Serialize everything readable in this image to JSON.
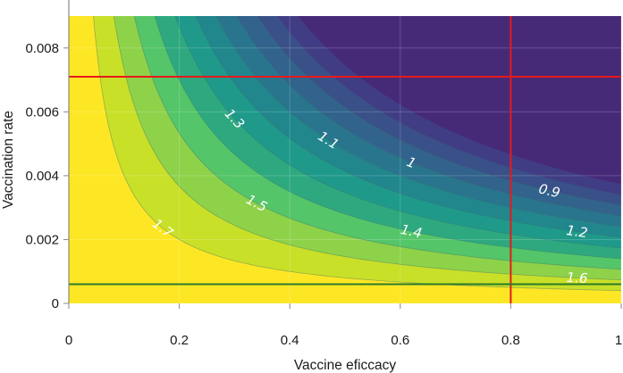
{
  "chart_data": {
    "type": "heatmap",
    "subtype": "filled-contour",
    "title": "",
    "xlabel": "Vaccine eficcacy",
    "ylabel": "Vaccination rate",
    "xlim": [
      0,
      1
    ],
    "ylim": [
      0,
      0.009
    ],
    "x_ticks": [
      0,
      0.2,
      0.4,
      0.6,
      0.8,
      1
    ],
    "x_tick_labels": [
      "0",
      "0.2",
      "0.4",
      "0.6",
      "0.8",
      "1"
    ],
    "y_ticks": [
      0,
      0.002,
      0.004,
      0.006,
      0.008
    ],
    "y_tick_labels": [
      "0",
      "0.002",
      "0.004",
      "0.006",
      "0.008"
    ],
    "grid": true,
    "colorscale": "viridis",
    "model": {
      "z_max": 1.82,
      "scale": 300
    },
    "contour_levels": [
      0.9,
      1.0,
      1.1,
      1.2,
      1.3,
      1.4,
      1.5,
      1.6,
      1.7
    ],
    "band_colors": [
      "#462a78",
      "#413d84",
      "#3a5088",
      "#31638c",
      "#29758e",
      "#21878d",
      "#1f9a8a",
      "#2ea97f",
      "#54c569",
      "#8ed24a",
      "#c8e028",
      "#fde724"
    ],
    "contour_labels": [
      {
        "text": "1.7",
        "x": 0.17,
        "level": 1.7
      },
      {
        "text": "1.5",
        "x": 0.34,
        "level": 1.5
      },
      {
        "text": "1.3",
        "x": 0.3,
        "level": 1.3
      },
      {
        "text": "1.1",
        "x": 0.47,
        "level": 1.1
      },
      {
        "text": "1",
        "x": 0.62,
        "level": 1.0
      },
      {
        "text": "0.9",
        "x": 0.87,
        "level": 0.9
      },
      {
        "text": "1.4",
        "x": 0.62,
        "level": 1.4
      },
      {
        "text": "1.2",
        "x": 0.92,
        "level": 1.2
      },
      {
        "text": "1.6",
        "x": 0.92,
        "level": 1.6
      }
    ],
    "reference_lines": [
      {
        "orientation": "vertical",
        "value": 0.8,
        "color": "#e8191a"
      },
      {
        "orientation": "horizontal",
        "value": 0.0071,
        "color": "#e8191a"
      },
      {
        "orientation": "horizontal",
        "value": 0.0006,
        "color": "#2a7a2a"
      }
    ]
  }
}
